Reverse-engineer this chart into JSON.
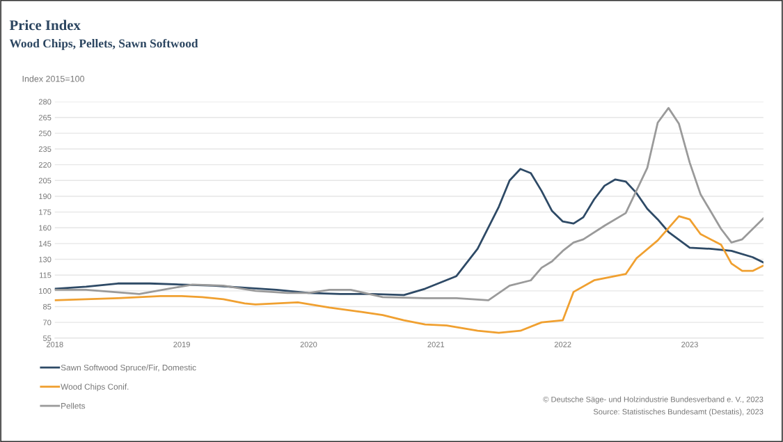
{
  "chart_data": {
    "type": "line",
    "title": "Price Index",
    "subtitle": "Wood Chips, Pellets, Sawn Softwood",
    "ylabel": "Index 2015=100",
    "series": [
      {
        "name": "Sawn Softwood Spruce/Fir, Domestic",
        "color": "#2e4a66",
        "x": [
          "2018-01",
          "2018-04",
          "2018-07",
          "2018-10",
          "2019-01",
          "2019-04",
          "2019-07",
          "2019-10",
          "2020-01",
          "2020-04",
          "2020-07",
          "2020-10",
          "2020-12",
          "2021-03",
          "2021-05",
          "2021-07",
          "2021-08",
          "2021-09",
          "2021-10",
          "2021-11",
          "2021-12",
          "2022-01",
          "2022-02",
          "2022-03",
          "2022-04",
          "2022-05",
          "2022-06",
          "2022-07",
          "2022-08",
          "2022-09",
          "2022-10",
          "2022-11",
          "2023-01",
          "2023-03",
          "2023-05",
          "2023-07",
          "2023-08"
        ],
        "values": [
          102,
          104,
          107,
          107,
          106,
          105,
          103,
          101,
          98,
          97,
          97,
          96,
          102,
          114,
          140,
          180,
          205,
          216,
          212,
          195,
          176,
          166,
          164,
          170,
          187,
          200,
          206,
          204,
          193,
          178,
          168,
          156,
          141,
          140,
          138,
          132,
          127
        ]
      },
      {
        "name": "Wood Chips Conif.",
        "color": "#f0a030",
        "x": [
          "2018-01",
          "2018-07",
          "2018-11",
          "2019-01",
          "2019-03",
          "2019-05",
          "2019-07",
          "2019-08",
          "2019-12",
          "2020-03",
          "2020-06",
          "2020-08",
          "2020-10",
          "2020-12",
          "2021-02",
          "2021-05",
          "2021-07",
          "2021-09",
          "2021-11",
          "2022-01",
          "2022-02",
          "2022-04",
          "2022-07",
          "2022-08",
          "2022-10",
          "2022-12",
          "2023-01",
          "2023-02",
          "2023-04",
          "2023-05",
          "2023-06",
          "2023-07",
          "2023-08"
        ],
        "values": [
          91,
          93,
          95,
          95,
          94,
          92,
          88,
          87,
          89,
          84,
          80,
          77,
          72,
          68,
          67,
          62,
          60,
          62,
          70,
          72,
          99,
          110,
          116,
          131,
          148,
          171,
          168,
          154,
          144,
          126,
          119,
          119,
          124
        ]
      },
      {
        "name": "Pellets",
        "color": "#9a9a9a",
        "x": [
          "2018-01",
          "2018-04",
          "2018-09",
          "2019-02",
          "2019-05",
          "2019-08",
          "2019-11",
          "2020-01",
          "2020-03",
          "2020-05",
          "2020-08",
          "2020-12",
          "2021-03",
          "2021-06",
          "2021-08",
          "2021-10",
          "2021-11",
          "2021-12",
          "2022-01",
          "2022-02",
          "2022-03",
          "2022-05",
          "2022-07",
          "2022-09",
          "2022-10",
          "2022-11",
          "2022-12",
          "2023-01",
          "2023-02",
          "2023-04",
          "2023-05",
          "2023-06",
          "2023-08"
        ],
        "values": [
          101,
          101,
          97,
          106,
          105,
          100,
          98,
          98,
          101,
          101,
          94,
          93,
          93,
          91,
          105,
          110,
          122,
          128,
          138,
          146,
          149,
          162,
          174,
          217,
          260,
          274,
          259,
          222,
          192,
          159,
          146,
          149,
          169
        ]
      }
    ],
    "xlim": [
      "2018-01",
      "2023-08"
    ],
    "xticks": [
      {
        "value": "2018-01",
        "label": "2018"
      },
      {
        "value": "2019-01",
        "label": "2019"
      },
      {
        "value": "2020-01",
        "label": "2020"
      },
      {
        "value": "2021-01",
        "label": "2021"
      },
      {
        "value": "2022-01",
        "label": "2022"
      },
      {
        "value": "2023-01",
        "label": "2023"
      }
    ],
    "ylim": [
      55,
      280
    ],
    "yticks": [
      55,
      70,
      85,
      100,
      115,
      130,
      145,
      160,
      175,
      190,
      205,
      220,
      235,
      250,
      265,
      280
    ],
    "grid": "y",
    "legend": "bottom left",
    "marker": "none",
    "line_style": "solid",
    "annotations": [
      "© Deutsche Säge- und Holzindustrie Bundesverband e. V., 2023",
      "Source: Statistisches Bundesamt (Destatis), 2023"
    ]
  }
}
